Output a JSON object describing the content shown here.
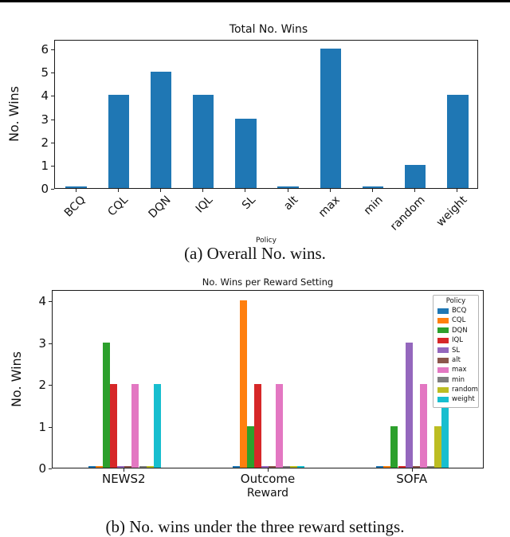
{
  "chart_data": [
    {
      "type": "bar",
      "title": "Total No. Wins",
      "xlabel": "Policy",
      "ylabel": "No. Wins",
      "categories": [
        "BCQ",
        "CQL",
        "DQN",
        "IQL",
        "SL",
        "alt",
        "max",
        "min",
        "random",
        "weight"
      ],
      "values": [
        0,
        4,
        5,
        4,
        3,
        0,
        6,
        0,
        1,
        4
      ],
      "bar_color": "#1f77b4",
      "ylim": [
        0,
        6.4
      ],
      "yticks": [
        0,
        1,
        2,
        3,
        4,
        5,
        6
      ],
      "grid": false,
      "caption": "(a) Overall No. wins."
    },
    {
      "type": "bar",
      "title": "No. Wins per Reward Setting",
      "xlabel": "Reward",
      "ylabel": "No. Wins",
      "categories": [
        "NEWS2",
        "Outcome",
        "SOFA"
      ],
      "series": [
        {
          "name": "BCQ",
          "color": "#1f77b4",
          "values": [
            0,
            0,
            0
          ]
        },
        {
          "name": "CQL",
          "color": "#ff7f0e",
          "values": [
            0,
            4,
            0
          ]
        },
        {
          "name": "DQN",
          "color": "#2ca02c",
          "values": [
            3,
            1,
            1
          ]
        },
        {
          "name": "IQL",
          "color": "#d62728",
          "values": [
            2,
            2,
            0
          ]
        },
        {
          "name": "SL",
          "color": "#9467bd",
          "values": [
            0,
            0,
            3
          ]
        },
        {
          "name": "alt",
          "color": "#8c564b",
          "values": [
            0,
            0,
            0
          ]
        },
        {
          "name": "max",
          "color": "#e377c2",
          "values": [
            2,
            2,
            2
          ]
        },
        {
          "name": "min",
          "color": "#7f7f7f",
          "values": [
            0,
            0,
            0
          ]
        },
        {
          "name": "random",
          "color": "#bcbd22",
          "values": [
            0,
            0,
            1
          ]
        },
        {
          "name": "weight",
          "color": "#17becf",
          "values": [
            2,
            0,
            2
          ]
        }
      ],
      "ylim": [
        0,
        4.25
      ],
      "yticks": [
        0,
        1,
        2,
        3,
        4
      ],
      "grid": false,
      "legend_title": "Policy",
      "legend_position": "upper right",
      "caption": "(b) No. wins under the three reward settings."
    }
  ]
}
